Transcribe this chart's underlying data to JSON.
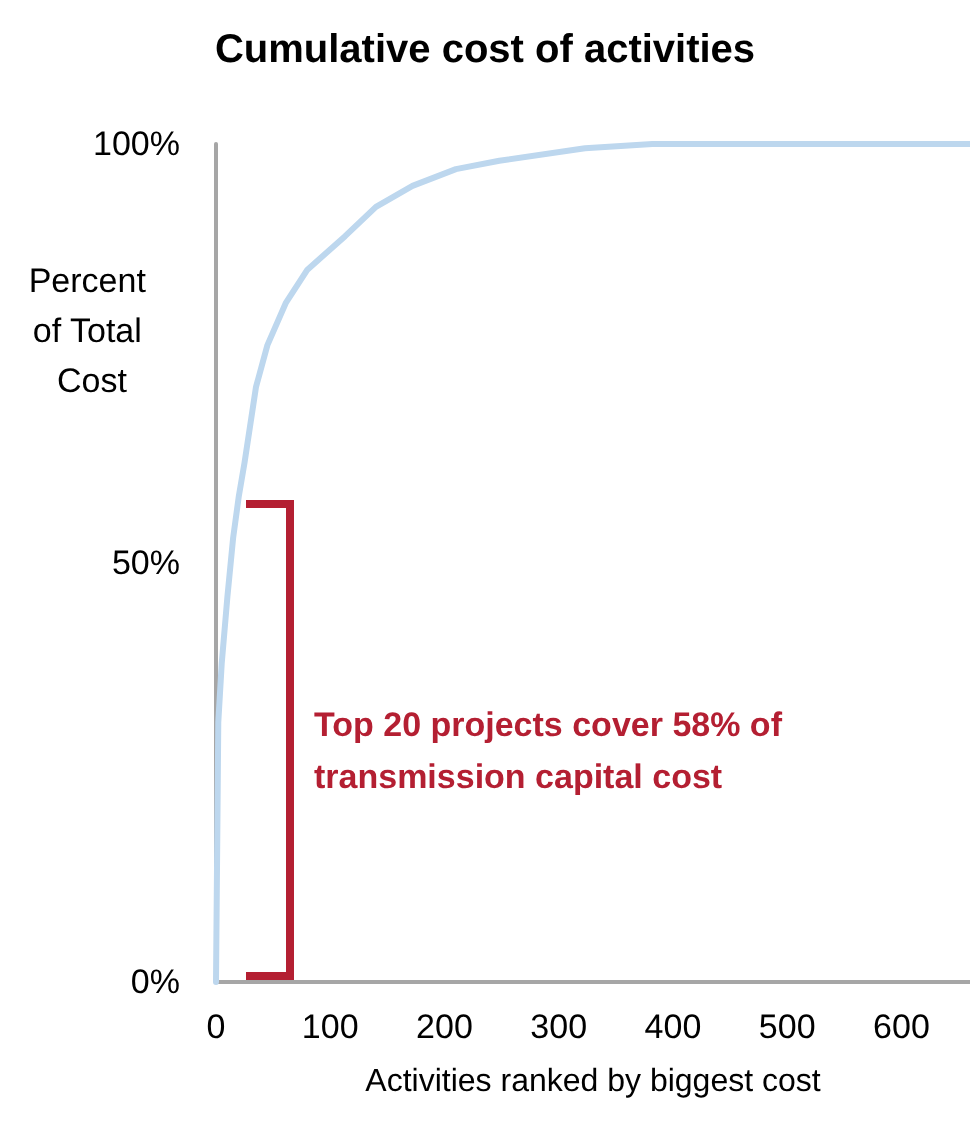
{
  "chart_data": {
    "type": "line",
    "title": "Cumulative cost of activities",
    "xlabel": "Activities ranked by biggest cost",
    "ylabel": "Percent of Total Cost",
    "annotations": [
      "Top 20 projects cover 58% of transmission capital cost"
    ],
    "series": [
      {
        "color": "#bdd7ee",
        "x": [
          0,
          2,
          5,
          10,
          15,
          20,
          25,
          35,
          45,
          61,
          80,
          113,
          140,
          172,
          210,
          248,
          323,
          382,
          660
        ],
        "values": [
          0,
          31,
          38,
          46,
          53,
          58,
          62,
          71,
          76,
          81,
          85,
          89,
          92.5,
          95,
          97,
          98,
          99.5,
          100,
          100
        ]
      }
    ],
    "xlim": [
      0,
      660
    ],
    "xticks": [
      0,
      100,
      200,
      300,
      400,
      500,
      600
    ],
    "ylim": [
      0,
      100
    ],
    "yticks": [
      {
        "value": 0,
        "label": "0%"
      },
      {
        "value": 50,
        "label": "50%"
      },
      {
        "value": 100,
        "label": "100%"
      }
    ],
    "grid": false,
    "marker": "none",
    "line_style": "solid"
  }
}
